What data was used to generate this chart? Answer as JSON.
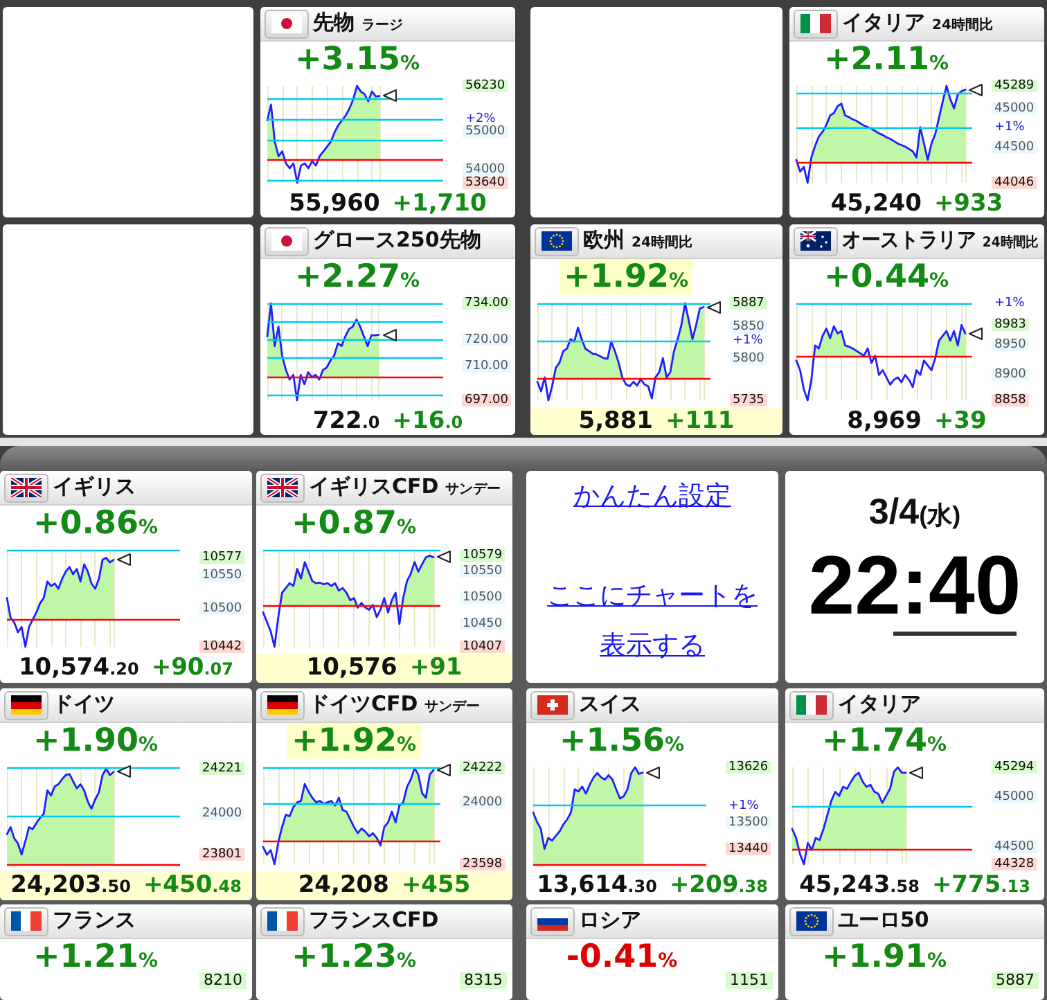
{
  "chart_data": [
    {
      "type": "area",
      "title": "先物",
      "subtitle": "ラージ",
      "annotations": [
        "+3.15%",
        "55,960",
        "+1,710",
        "+2%"
      ],
      "categories": [
        null,
        null,
        null,
        null,
        null,
        null,
        null,
        null,
        null,
        null,
        null,
        null,
        null,
        null,
        null,
        null,
        null,
        null,
        null,
        null,
        null,
        null,
        null,
        null,
        null,
        null,
        null,
        null,
        null,
        null,
        null
      ],
      "values": [
        55310,
        55730,
        54740,
        54350,
        54480,
        54160,
        54030,
        54160,
        53640,
        54100,
        54160,
        54030,
        54220,
        54100,
        54350,
        54480,
        54610,
        54740,
        54990,
        55180,
        55310,
        55440,
        55630,
        55880,
        56230,
        56080,
        56010,
        55820,
        56080,
        55950,
        55960
      ],
      "color": "#2020ff",
      "ylim": [
        53640,
        56230
      ],
      "yticks": [
        53640,
        54000,
        55000,
        56230
      ],
      "ref_lines": [
        {
          "axis": "y",
          "value": 54250,
          "color": "#ff0000"
        },
        {
          "axis": "y",
          "value": 55340,
          "color": "#00c8f0"
        },
        {
          "axis": "y",
          "value": 53710,
          "color": "#00c8f0"
        },
        {
          "axis": "y",
          "value": 54790,
          "color": "#00c8f0"
        },
        {
          "axis": "y",
          "value": 55880,
          "color": "#00c8f0"
        }
      ],
      "grid": "x",
      "tick_labels": "y"
    },
    {
      "type": "area",
      "title": "イタリア",
      "subtitle": "24時間比",
      "annotations": [
        "+2.11%",
        "45,240",
        "+933",
        "+1%"
      ],
      "categories": [
        null,
        null,
        null,
        null,
        null,
        null,
        null,
        null,
        null,
        null,
        null,
        null,
        null,
        null,
        null,
        null,
        null,
        null,
        null,
        null,
        null,
        null,
        null,
        null,
        null,
        null,
        null,
        null,
        null,
        null,
        null,
        null,
        null,
        null,
        null,
        null,
        null,
        null,
        null,
        null,
        null,
        null,
        null,
        null,
        null,
        null
      ],
      "values": [
        44340,
        44190,
        44250,
        44046,
        44370,
        44520,
        44640,
        44700,
        44790,
        44910,
        44940,
        45030,
        45060,
        44910,
        44890,
        44860,
        44840,
        44810,
        44780,
        44760,
        44740,
        44710,
        44680,
        44660,
        44630,
        44610,
        44580,
        44550,
        44530,
        44510,
        44480,
        44450,
        44370,
        44760,
        44550,
        44340,
        44550,
        44670,
        44880,
        45090,
        45289,
        45120,
        45000,
        45180,
        45220,
        45240
      ],
      "color": "#2020ff",
      "ylim": [
        44046,
        45289
      ],
      "yticks": [
        44046,
        44500,
        45000,
        45289
      ],
      "ref_lines": [
        {
          "axis": "y",
          "value": 44307,
          "color": "#ff0000"
        },
        {
          "axis": "y",
          "value": 44750,
          "color": "#00c8f0"
        },
        {
          "axis": "y",
          "value": 45193,
          "color": "#00c8f0"
        }
      ],
      "grid": "x",
      "tick_labels": "y"
    },
    {
      "type": "area",
      "title": "グロース250先物",
      "annotations": [
        "+2.27%",
        "722.0",
        "+16.0"
      ],
      "categories": [
        null,
        null,
        null,
        null,
        null,
        null,
        null,
        null,
        null,
        null,
        null,
        null,
        null,
        null,
        null,
        null,
        null,
        null,
        null,
        null,
        null,
        null,
        null,
        null,
        null,
        null,
        null,
        null,
        null,
        null,
        null
      ],
      "values": [
        721.4,
        734,
        717.7,
        725.1,
        714.1,
        708.6,
        704.9,
        706.7,
        697,
        706.7,
        703.1,
        707.7,
        705.8,
        706.7,
        704.9,
        708.6,
        709.5,
        712.2,
        714.1,
        718.7,
        717.7,
        721.4,
        724.2,
        725.1,
        727.8,
        725.1,
        721.4,
        717.7,
        721.8,
        721.8,
        722
      ],
      "color": "#2020ff",
      "ylim": [
        697,
        734
      ],
      "yticks": [
        {
          "value": 697,
          "label": "697.00"
        },
        {
          "value": 710,
          "label": "710.00"
        },
        {
          "value": 720,
          "label": "720.00"
        },
        {
          "value": 734,
          "label": "734.00"
        }
      ],
      "ref_lines": [
        {
          "axis": "y",
          "value": 706,
          "color": "#ff0000"
        },
        {
          "axis": "y",
          "value": 698.9,
          "color": "#00c8f0"
        },
        {
          "axis": "y",
          "value": 713.1,
          "color": "#00c8f0"
        },
        {
          "axis": "y",
          "value": 720.1,
          "color": "#00c8f0"
        },
        {
          "axis": "y",
          "value": 727.2,
          "color": "#00c8f0"
        },
        {
          "axis": "y",
          "value": 734,
          "color": "#00c8f0"
        }
      ],
      "grid": "x",
      "tick_labels": "y"
    },
    {
      "type": "area",
      "title": "欧州",
      "subtitle": "24時間比",
      "annotations": [
        "+1.92%",
        "5,881",
        "+111",
        "+1%"
      ],
      "categories": [
        null,
        null,
        null,
        null,
        null,
        null,
        null,
        null,
        null,
        null,
        null,
        null,
        null,
        null,
        null,
        null,
        null,
        null,
        null,
        null,
        null,
        null,
        null,
        null,
        null,
        null,
        null,
        null,
        null,
        null,
        null,
        null,
        null,
        null,
        null,
        null,
        null,
        null,
        null,
        null,
        null,
        null,
        null,
        null,
        null,
        null
      ],
      "values": [
        5764,
        5749,
        5771,
        5735,
        5757,
        5786,
        5794,
        5812,
        5816,
        5831,
        5827,
        5849,
        5831,
        5816,
        5812,
        5808,
        5807,
        5804,
        5801,
        5800,
        5827,
        5812,
        5794,
        5771,
        5760,
        5757,
        5764,
        5758,
        5768,
        5760,
        5757,
        5738,
        5771,
        5779,
        5801,
        5771,
        5779,
        5812,
        5831,
        5853,
        5887,
        5860,
        5831,
        5853,
        5879,
        5881
      ],
      "color": "#2020ff",
      "ylim": [
        5735,
        5887
      ],
      "yticks": [
        5735,
        5800,
        5850,
        5887
      ],
      "ref_lines": [
        {
          "axis": "y",
          "value": 5770,
          "color": "#ff0000"
        },
        {
          "axis": "y",
          "value": 5827.7,
          "color": "#00c8f0"
        },
        {
          "axis": "y",
          "value": 5885.4,
          "color": "#00c8f0"
        }
      ],
      "grid": "x",
      "tick_labels": "y"
    },
    {
      "type": "area",
      "title": "オーストラリア",
      "subtitle": "24時間比",
      "annotations": [
        "+0.44%",
        "8,969",
        "+39",
        "+1%"
      ],
      "categories": [
        null,
        null,
        null,
        null,
        null,
        null,
        null,
        null,
        null,
        null,
        null,
        null,
        null,
        null,
        null,
        null,
        null,
        null,
        null,
        null,
        null,
        null,
        null,
        null,
        null,
        null,
        null,
        null,
        null,
        null,
        null,
        null,
        null,
        null,
        null,
        null,
        null,
        null,
        null,
        null,
        null,
        null,
        null,
        null,
        null,
        null
      ],
      "values": [
        8924,
        8908,
        8876,
        8858,
        8892,
        8949,
        8944,
        8965,
        8977,
        8961,
        8981,
        8969,
        8973,
        8949,
        8947,
        8944,
        8940,
        8936,
        8932,
        8944,
        8920,
        8932,
        8900,
        8908,
        8896,
        8884,
        8892,
        8896,
        8888,
        8900,
        8892,
        8880,
        8908,
        8900,
        8924,
        8916,
        8908,
        8928,
        8957,
        8965,
        8973,
        8957,
        8973,
        8949,
        8983,
        8969
      ],
      "color": "#2020ff",
      "ylim": [
        8858,
        9019
      ],
      "yticks": [
        8858,
        8900,
        8950,
        8983
      ],
      "ref_lines": [
        {
          "axis": "y",
          "value": 8930,
          "color": "#ff0000"
        },
        {
          "axis": "y",
          "value": 9019,
          "color": "#00c8f0"
        }
      ],
      "grid": "x",
      "tick_labels": "y"
    },
    {
      "type": "area",
      "title": "イギリス",
      "annotations": [
        "+0.86%",
        "10,574.20",
        "+90.07"
      ],
      "categories": [
        null,
        null,
        null,
        null,
        null,
        null,
        null,
        null,
        null,
        null,
        null,
        null,
        null,
        null,
        null,
        null,
        null,
        null,
        null,
        null,
        null,
        null,
        null,
        null,
        null,
        null,
        null,
        null,
        null,
        null
      ],
      "values": [
        10516,
        10486,
        10479,
        10464,
        10472,
        10442,
        10472,
        10483,
        10494,
        10508,
        10516,
        10541,
        10534,
        10538,
        10530,
        10545,
        10556,
        10563,
        10552,
        10560,
        10541,
        10567,
        10556,
        10538,
        10530,
        10545,
        10574,
        10577,
        10570,
        10574
      ],
      "color": "#2020ff",
      "ylim": [
        10442,
        10589
      ],
      "yticks": [
        10442,
        10500,
        10550,
        10577
      ],
      "ref_lines": [
        {
          "axis": "y",
          "value": 10484,
          "color": "#ff0000"
        },
        {
          "axis": "y",
          "value": 10589,
          "color": "#00c8f0"
        }
      ],
      "grid": "x",
      "tick_labels": "y"
    },
    {
      "type": "area",
      "title": "イギリスCFD",
      "subtitle": "サンデー",
      "annotations": [
        "+0.87%",
        "10,576",
        "+91"
      ],
      "categories": [
        null,
        null,
        null,
        null,
        null,
        null,
        null,
        null,
        null,
        null,
        null,
        null,
        null,
        null,
        null,
        null,
        null,
        null,
        null,
        null,
        null,
        null,
        null,
        null,
        null,
        null,
        null,
        null,
        null,
        null,
        null,
        null,
        null,
        null,
        null,
        null,
        null,
        null,
        null,
        null,
        null,
        null,
        null,
        null,
        null,
        null
      ],
      "values": [
        10472,
        10454,
        10436,
        10407,
        10463,
        10509,
        10518,
        10527,
        10522,
        10554,
        10536,
        10567,
        10549,
        10531,
        10527,
        10528,
        10525,
        10527,
        10522,
        10527,
        10513,
        10518,
        10509,
        10495,
        10499,
        10481,
        10490,
        10481,
        10477,
        10486,
        10463,
        10477,
        10499,
        10472,
        10495,
        10509,
        10450,
        10499,
        10531,
        10545,
        10567,
        10549,
        10563,
        10576,
        10579,
        10576
      ],
      "color": "#2020ff",
      "ylim": [
        10407,
        10590
      ],
      "yticks": [
        10407,
        10450,
        10500,
        10550,
        10579
      ],
      "ref_lines": [
        {
          "axis": "y",
          "value": 10485,
          "color": "#ff0000"
        },
        {
          "axis": "y",
          "value": 10590,
          "color": "#00c8f0"
        }
      ],
      "grid": "x",
      "tick_labels": "y"
    },
    {
      "type": "other",
      "annotations": [
        "かんたん設定",
        "ここにチャートを表示する"
      ]
    },
    {
      "type": "other",
      "title": "3/4(水)",
      "annotations": [
        "22:40"
      ]
    },
    {
      "type": "area",
      "title": "ドイツ",
      "annotations": [
        "+1.90%",
        "24,203.50",
        "+450.48"
      ],
      "categories": [
        null,
        null,
        null,
        null,
        null,
        null,
        null,
        null,
        null,
        null,
        null,
        null,
        null,
        null,
        null,
        null,
        null,
        null,
        null,
        null,
        null,
        null,
        null,
        null,
        null,
        null,
        null,
        null,
        null,
        null
      ],
      "values": [
        23900,
        23935,
        23880,
        23855,
        23801,
        23865,
        23935,
        23925,
        23955,
        23980,
        24000,
        24115,
        24090,
        24135,
        24145,
        24170,
        24190,
        24195,
        24160,
        24125,
        24145,
        24115,
        24060,
        24025,
        24070,
        24105,
        24190,
        24221,
        24190,
        24205
      ],
      "color": "#2020ff",
      "ylim": [
        23753,
        24228
      ],
      "yticks": [
        23801,
        24000,
        24221
      ],
      "ref_lines": [
        {
          "axis": "y",
          "value": 23753,
          "color": "#ff0000"
        },
        {
          "axis": "y",
          "value": 23990,
          "color": "#00c8f0"
        },
        {
          "axis": "y",
          "value": 24228,
          "color": "#00c8f0"
        }
      ],
      "grid": "x",
      "tick_labels": "y"
    },
    {
      "type": "area",
      "title": "ドイツCFD",
      "subtitle": "サンデー",
      "annotations": [
        "+1.92%",
        "24,208",
        "+455"
      ],
      "categories": [
        null,
        null,
        null,
        null,
        null,
        null,
        null,
        null,
        null,
        null,
        null,
        null,
        null,
        null,
        null,
        null,
        null,
        null,
        null,
        null,
        null,
        null,
        null,
        null,
        null,
        null,
        null,
        null,
        null,
        null,
        null,
        null,
        null,
        null,
        null,
        null,
        null,
        null,
        null,
        null,
        null,
        null,
        null,
        null,
        null,
        null
      ],
      "values": [
        23710,
        23660,
        23690,
        23598,
        23740,
        23840,
        23920,
        23910,
        23970,
        24000,
        24010,
        24120,
        24070,
        24030,
        24000,
        24010,
        23990,
        24000,
        24010,
        23980,
        24030,
        23950,
        23940,
        23890,
        23840,
        23800,
        23830,
        23810,
        23780,
        23800,
        23770,
        23720,
        23840,
        23870,
        23940,
        23870,
        23980,
        24000,
        24100,
        24150,
        24222,
        24180,
        24060,
        24030,
        24180,
        24210
      ],
      "color": "#2020ff",
      "ylim": [
        23598,
        24228
      ],
      "yticks": [
        23598,
        24000,
        24222
      ],
      "ref_lines": [
        {
          "axis": "y",
          "value": 23753,
          "color": "#ff0000"
        },
        {
          "axis": "y",
          "value": 23990,
          "color": "#00c8f0"
        },
        {
          "axis": "y",
          "value": 24228,
          "color": "#00c8f0"
        }
      ],
      "grid": "x",
      "tick_labels": "y"
    },
    {
      "type": "area",
      "title": "スイス",
      "annotations": [
        "+1.56%",
        "13,614.30",
        "+209.38",
        "+1%"
      ],
      "categories": [
        null,
        null,
        null,
        null,
        null,
        null,
        null,
        null,
        null,
        null,
        null,
        null,
        null,
        null,
        null,
        null,
        null,
        null,
        null,
        null,
        null,
        null,
        null,
        null,
        null,
        null,
        null,
        null,
        null,
        null
      ],
      "values": [
        13523,
        13502,
        13486,
        13440,
        13465,
        13459,
        13470,
        13480,
        13496,
        13507,
        13523,
        13576,
        13571,
        13582,
        13566,
        13587,
        13603,
        13613,
        13603,
        13598,
        13608,
        13598,
        13576,
        13555,
        13560,
        13576,
        13613,
        13626,
        13611,
        13614
      ],
      "color": "#2020ff",
      "ylim": [
        13405,
        13626
      ],
      "yticks": [
        13440,
        13500,
        13626
      ],
      "ref_lines": [
        {
          "axis": "y",
          "value": 13405,
          "color": "#ff0000"
        },
        {
          "axis": "y",
          "value": 13539,
          "color": "#00c8f0"
        }
      ],
      "grid": "x",
      "tick_labels": "y"
    },
    {
      "type": "area",
      "title": "イタリア",
      "annotations": [
        "+1.74%",
        "45,243.58",
        "+775.13"
      ],
      "categories": [
        null,
        null,
        null,
        null,
        null,
        null,
        null,
        null,
        null,
        null,
        null,
        null,
        null,
        null,
        null,
        null,
        null,
        null,
        null,
        null,
        null,
        null,
        null,
        null,
        null,
        null,
        null,
        null,
        null,
        null
      ],
      "values": [
        44680,
        44590,
        44430,
        44328,
        44540,
        44470,
        44590,
        44570,
        44680,
        44820,
        44960,
        45050,
        45010,
        45100,
        45080,
        45150,
        45210,
        45240,
        45150,
        45100,
        45120,
        45050,
        45030,
        44940,
        45010,
        45080,
        45250,
        45294,
        45240,
        45240
      ],
      "color": "#2020ff",
      "ylim": [
        44328,
        45294
      ],
      "yticks": [
        44328,
        44500,
        45000,
        45294
      ],
      "ref_lines": [
        {
          "axis": "y",
          "value": 44470,
          "color": "#ff0000"
        },
        {
          "axis": "y",
          "value": 44910,
          "color": "#00c8f0"
        }
      ],
      "grid": "x",
      "tick_labels": "y"
    },
    {
      "type": "other",
      "title": "フランス",
      "annotations": [
        "+1.21%",
        "8210"
      ]
    },
    {
      "type": "other",
      "title": "フランスCFD",
      "annotations": [
        "+1.23%",
        "8315"
      ]
    },
    {
      "type": "other",
      "title": "ロシア",
      "annotations": [
        "-0.41%",
        "1151"
      ]
    },
    {
      "type": "other",
      "title": "ユーロ50",
      "annotations": [
        "+1.91%",
        "5887"
      ]
    }
  ]
}
